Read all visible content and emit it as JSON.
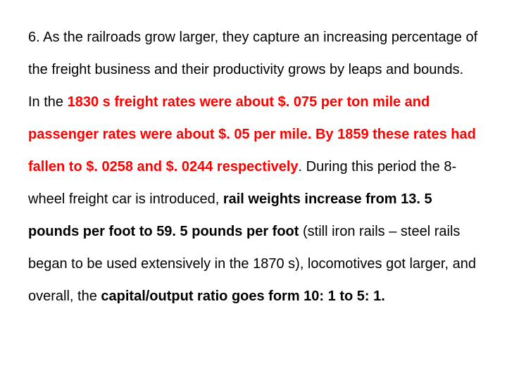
{
  "paragraph": {
    "text_black_1": "6.  As the railroads grow larger, they capture an increasing percentage of the freight business and their productivity grows by leaps and bounds.  In the ",
    "text_red_1": "1830 s freight rates were about $. 075 per ton mile and passenger rates were about $. 05 per mile. By 1859 these rates had fallen to $. 0258 and $. 0244 respectively",
    "text_black_2": ".  During this period the 8-wheel freight car is introduced, ",
    "text_bold_1": "rail weights increase from 13. 5 pounds per foot to 59. 5 pounds per foot",
    "text_black_3": " (still iron rails – steel rails began to be used extensively in the 1870 s), locomotives got larger, and overall, the ",
    "text_bold_2": "capital/output ratio goes form 10: 1 to 5: 1."
  },
  "styles": {
    "background_color": "#ffffff",
    "text_color": "#000000",
    "highlight_color": "#ff0000",
    "font_size": 20,
    "line_height": 2.3,
    "font_family": "Arial, sans-serif"
  }
}
